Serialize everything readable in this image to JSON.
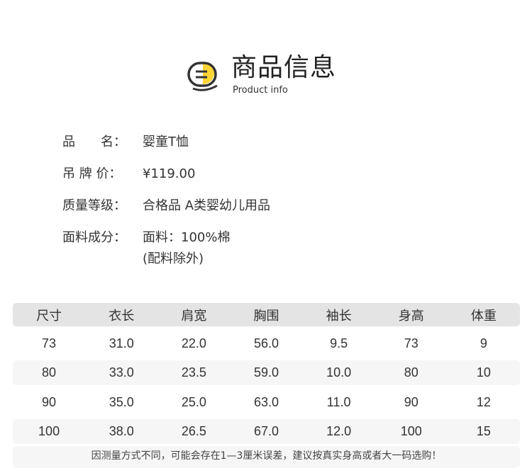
{
  "header": {
    "title": "商品信息",
    "subtitle": "Product info",
    "icon": "document-list-icon",
    "accent": "#fcd535"
  },
  "info": [
    {
      "label": "品　　名：",
      "value": "婴童T恤"
    },
    {
      "label": "吊 牌 价：",
      "value": "¥119.00"
    },
    {
      "label": "质量等级：",
      "value": "合格品 A类婴幼儿用品"
    },
    {
      "label": "面料成分：",
      "value": "面料：100%棉",
      "value2": "(配料除外)"
    }
  ],
  "table": {
    "headers": [
      "尺寸",
      "衣长",
      "肩宽",
      "胸围",
      "袖长",
      "身高",
      "体重"
    ],
    "rows": [
      [
        "73",
        "31.0",
        "22.0",
        "56.0",
        "9.5",
        "73",
        "9"
      ],
      [
        "80",
        "33.0",
        "23.5",
        "59.0",
        "10.0",
        "80",
        "10"
      ],
      [
        "90",
        "35.0",
        "25.0",
        "63.0",
        "11.0",
        "90",
        "12"
      ],
      [
        "100",
        "38.0",
        "26.5",
        "67.0",
        "12.0",
        "100",
        "15"
      ]
    ]
  },
  "footer": "因测量方式不同，可能会存在1—3厘米误差，建议按真实身高或者大一码选购！"
}
